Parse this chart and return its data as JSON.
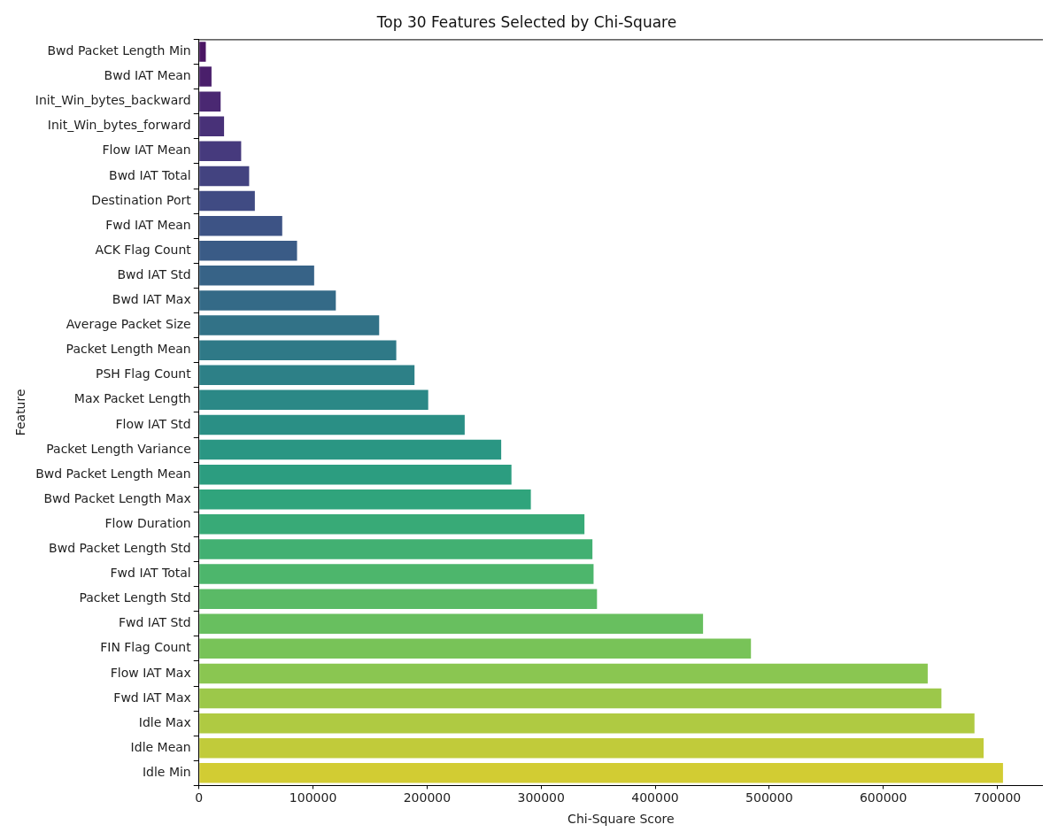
{
  "chart_data": {
    "type": "bar",
    "orientation": "horizontal",
    "title": "Top 30 Features Selected by Chi-Square",
    "xlabel": "Chi-Square Score",
    "ylabel": "Feature",
    "categories": [
      "Bwd Packet Length Min",
      "Bwd IAT Mean",
      "Init_Win_bytes_backward",
      "Init_Win_bytes_forward",
      "Flow IAT Mean",
      "Bwd IAT Total",
      "Destination Port",
      "Fwd IAT Mean",
      "ACK Flag Count",
      "Bwd IAT Std",
      "Bwd IAT Max",
      "Average Packet Size",
      "Packet Length Mean",
      "PSH Flag Count",
      "Max Packet Length",
      "Flow IAT Std",
      "Packet Length Variance",
      "Bwd Packet Length Mean",
      "Bwd Packet Length Max",
      "Flow Duration",
      "Bwd Packet Length Std",
      "Fwd IAT Total",
      "Packet Length Std",
      "Fwd IAT Std",
      "FIN Flag Count",
      "Flow IAT Max",
      "Fwd IAT Max",
      "Idle Max",
      "Idle Mean",
      "Idle Min"
    ],
    "values": [
      6000,
      11000,
      19000,
      22000,
      37000,
      44000,
      49000,
      73000,
      86000,
      101000,
      120000,
      158000,
      173000,
      189000,
      201000,
      233000,
      265000,
      274000,
      291000,
      338000,
      345000,
      346000,
      349000,
      442000,
      484000,
      639000,
      651000,
      680000,
      688000,
      705000
    ],
    "colors": [
      "#4a1563",
      "#4a1f6b",
      "#4a2872",
      "#483178",
      "#463a7d",
      "#434380",
      "#404b83",
      "#3d5385",
      "#3a5b86",
      "#376387",
      "#346a87",
      "#327287",
      "#2f7987",
      "#2d8087",
      "#2b8886",
      "#2a8f85",
      "#2a9683",
      "#2c9d80",
      "#30a47c",
      "#38aa77",
      "#42b072",
      "#4db66c",
      "#5aba66",
      "#68bf5f",
      "#78c358",
      "#8ac651",
      "#9cc84a",
      "#afca42",
      "#c1cb3a",
      "#d2cc33"
    ],
    "xlim": [
      0,
      740000
    ],
    "xticks": [
      0,
      100000,
      200000,
      300000,
      400000,
      500000,
      600000,
      700000
    ],
    "grid": false,
    "legend": false
  }
}
